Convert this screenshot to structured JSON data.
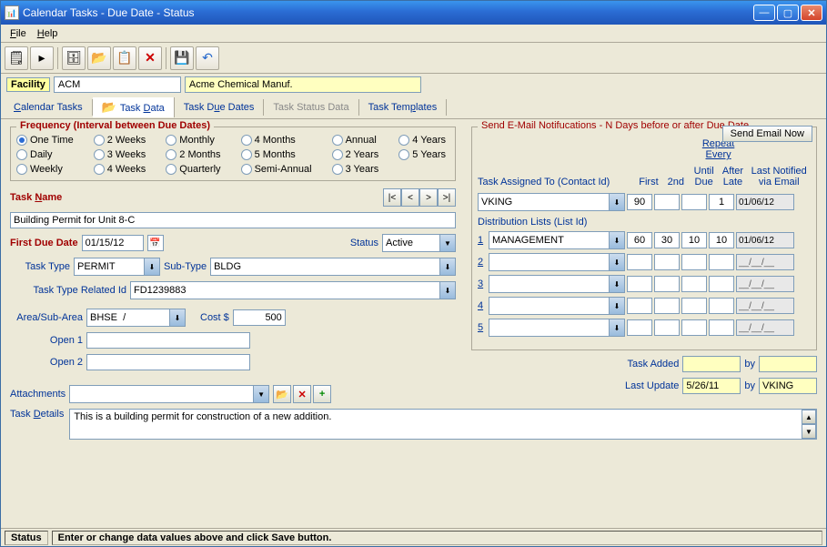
{
  "window": {
    "title": "Calendar Tasks - Due Date - Status"
  },
  "menu": {
    "file": "File",
    "help": "Help"
  },
  "facility": {
    "label": "Facility",
    "code": "ACM",
    "name": "Acme Chemical Manuf."
  },
  "tabs": {
    "calendar": "Calendar Tasks",
    "data": "Task Data",
    "due": "Task Due Dates",
    "status": "Task Status Data",
    "templates": "Task Templates"
  },
  "frequency": {
    "title": "Frequency (Interval between Due Dates)",
    "options": {
      "one_time": "One Time",
      "two_weeks": "2 Weeks",
      "monthly": "Monthly",
      "four_months": "4 Months",
      "annual": "Annual",
      "four_years": "4 Years",
      "daily": "Daily",
      "three_weeks": "3 Weeks",
      "two_months": "2 Months",
      "five_months": "5 Months",
      "two_years": "2 Years",
      "five_years": "5 Years",
      "weekly": "Weekly",
      "four_weeks": "4 Weeks",
      "quarterly": "Quarterly",
      "semi_annual": "Semi-Annual",
      "three_years": "3 Years"
    }
  },
  "task": {
    "name_label": "Task Name",
    "name_value": "Building Permit for Unit 8-C",
    "first_due_label": "First Due Date",
    "first_due_value": "01/15/12",
    "status_label": "Status",
    "status_value": "Active",
    "type_label": "Task Type",
    "type_value": "PERMIT",
    "subtype_label": "Sub-Type",
    "subtype_value": "BLDG",
    "related_id_label": "Task Type Related Id",
    "related_id_value": "FD1239883",
    "area_label": "Area/Sub-Area",
    "area_value": "BHSE  /",
    "cost_label": "Cost $",
    "cost_value": "500",
    "open1_label": "Open 1",
    "open1_value": "",
    "open2_label": "Open 2",
    "open2_value": "",
    "attachments_label": "Attachments",
    "attachments_value": ""
  },
  "notif": {
    "title": "Send E-Mail Notifucations - N Days before or after Due Date",
    "send_btn": "Send Email Now",
    "repeat_label": "Repeat Every",
    "assigned_label": "Task Assigned To (Contact Id)",
    "first_hdr": "First",
    "second_hdr": "2nd",
    "until_hdr": "Until",
    "due_hdr": "Due",
    "after_hdr": "After",
    "late_hdr": "Late",
    "last_hdr1": "Last Notified",
    "last_hdr2": "via Email",
    "assigned_value": "VKING",
    "assigned_first": "90",
    "assigned_after": "1",
    "assigned_date": "01/06/12",
    "dist_label": "Distribution Lists (List Id)",
    "rows": [
      {
        "n": "1",
        "id": "MANAGEMENT",
        "first": "60",
        "second": "30",
        "until": "10",
        "after": "10",
        "date": "01/06/12"
      },
      {
        "n": "2",
        "id": "",
        "first": "",
        "second": "",
        "until": "",
        "after": "",
        "date": "__/__/__"
      },
      {
        "n": "3",
        "id": "",
        "first": "",
        "second": "",
        "until": "",
        "after": "",
        "date": "__/__/__"
      },
      {
        "n": "4",
        "id": "",
        "first": "",
        "second": "",
        "until": "",
        "after": "",
        "date": "__/__/__"
      },
      {
        "n": "5",
        "id": "",
        "first": "",
        "second": "",
        "until": "",
        "after": "",
        "date": "__/__/__"
      }
    ]
  },
  "meta": {
    "added_label": "Task Added",
    "added_value": "",
    "added_by_label": "by",
    "added_by_value": "",
    "update_label": "Last Update",
    "update_value": "5/26/11",
    "update_by_label": "by",
    "update_by_value": "VKING"
  },
  "details": {
    "label": "Task Details",
    "value": "This is a building permit for construction of a new addition."
  },
  "statusbar": {
    "label": "Status",
    "text": "Enter or change data values above and click Save button."
  }
}
